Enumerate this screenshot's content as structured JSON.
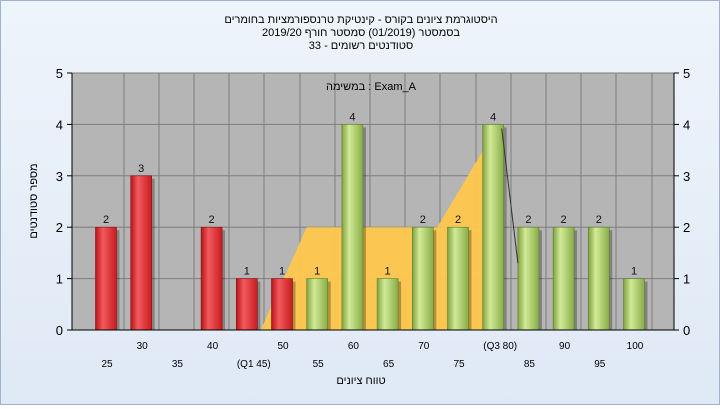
{
  "chart_data": {
    "type": "bar",
    "title_lines": [
      "היסטוגרמת ציונים בקורס - קינטיקת טרנספורמציות בחומרים",
      "בסמסטר  (01/2019)  סמסטר חורף 2019/20",
      "סטודנטים רשומים - 33"
    ],
    "subtitle": "במשימה : Exam_A",
    "xlabel": "טווח ציונים",
    "ylabel": "מספר סטודנטים",
    "ylim": [
      0,
      5
    ],
    "yticks": [
      "0",
      "1",
      "2",
      "3",
      "4",
      "5"
    ],
    "grid": true,
    "categories": [
      "25",
      "30",
      "35",
      "40",
      "45",
      "50",
      "55",
      "60",
      "65",
      "70",
      "75",
      "80",
      "85",
      "90",
      "95",
      "100"
    ],
    "tick_labels": [
      "25",
      "30",
      "35",
      "40",
      "(Q1 45)",
      "50",
      "55",
      "60",
      "65",
      "70",
      "75",
      "(Q3 80)",
      "85",
      "90",
      "95",
      "100"
    ],
    "values": [
      2,
      3,
      0,
      2,
      1,
      1,
      1,
      4,
      1,
      2,
      2,
      4,
      2,
      2,
      2,
      1
    ],
    "value_labels": [
      "2",
      "3",
      "",
      "2",
      "1",
      "1",
      "1",
      "4",
      "1",
      "2",
      "2",
      "4",
      "2",
      "2",
      "2",
      "1"
    ],
    "bar_colors": [
      "#e8363a",
      "#e8363a",
      "#e8363a",
      "#e8363a",
      "#e8363a",
      "#e8363a",
      "#9bc25a",
      "#9bc25a",
      "#9bc25a",
      "#9bc25a",
      "#9bc25a",
      "#9bc25a",
      "#9bc25a",
      "#9bc25a",
      "#9bc25a",
      "#9bc25a"
    ],
    "quartile_band": {
      "from": 45,
      "to": 80,
      "color": "#ffc84d"
    },
    "colors": {
      "plot_bg": "#b5b5b5",
      "grid": "#7d7d7d",
      "fail": "#e8363a",
      "pass": "#9bc25a",
      "band": "#ffc84d"
    }
  }
}
